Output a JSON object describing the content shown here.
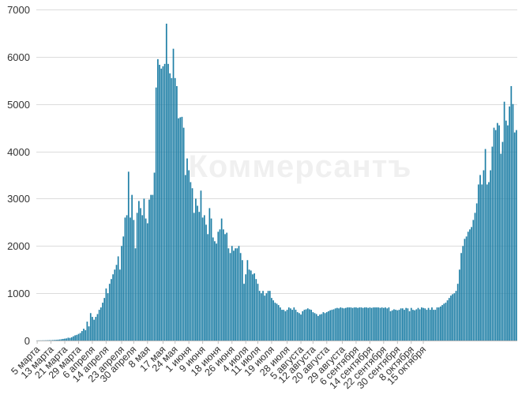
{
  "chart_data": {
    "type": "bar",
    "ylim": [
      0,
      7000
    ],
    "y_ticks": [
      0,
      1000,
      2000,
      3000,
      4000,
      5000,
      6000,
      7000
    ],
    "grid": true,
    "color": "#1f7fa6",
    "watermark": "Коммерсантъ",
    "x_tick_labels": [
      "5 марта",
      "13 марта",
      "21 марта",
      "29 марта",
      "6 апреля",
      "14 апреля",
      "23 апреля",
      "30 апреля",
      "8 мая",
      "17 мая",
      "24 мая",
      "1 июня",
      "9 июня",
      "18 июня",
      "26 июня",
      "4 июля",
      "11 июля",
      "19 июля",
      "28 июля",
      "5 августа",
      "12 августа",
      "20 августа",
      "29 августа",
      "6 сентября",
      "14 сентября",
      "22 сентября",
      "30 сентября",
      "8 октября",
      "15 октября"
    ],
    "x_tick_index": [
      0,
      8,
      16,
      24,
      32,
      40,
      49,
      56,
      64,
      73,
      80,
      88,
      96,
      105,
      113,
      121,
      128,
      136,
      145,
      153,
      160,
      168,
      177,
      185,
      193,
      201,
      209,
      217,
      224
    ],
    "values": [
      2,
      3,
      3,
      4,
      4,
      5,
      6,
      8,
      8,
      10,
      12,
      14,
      18,
      22,
      28,
      34,
      40,
      45,
      60,
      55,
      70,
      90,
      110,
      120,
      140,
      160,
      200,
      250,
      220,
      400,
      300,
      580,
      500,
      440,
      500,
      560,
      650,
      700,
      800,
      900,
      1100,
      1000,
      1200,
      1300,
      1400,
      1500,
      1600,
      1780,
      1500,
      2000,
      2200,
      2600,
      2650,
      3570,
      2600,
      3080,
      2550,
      1950,
      2700,
      2950,
      2800,
      2650,
      3000,
      2580,
      2480,
      2980,
      3080,
      3080,
      3550,
      5350,
      5950,
      5830,
      5750,
      5800,
      5850,
      6700,
      5850,
      5650,
      5550,
      6170,
      5550,
      5380,
      4700,
      4720,
      4730,
      4500,
      3500,
      3850,
      3600,
      3350,
      3220,
      2700,
      3000,
      2850,
      2720,
      3170,
      2600,
      2650,
      2450,
      2250,
      2800,
      2580,
      2180,
      2100,
      2050,
      2300,
      2350,
      2580,
      2350,
      2250,
      2280,
      1950,
      1850,
      2000,
      1900,
      1950,
      1950,
      2000,
      1850,
      1700,
      1200,
      1400,
      1700,
      1500,
      1480,
      1400,
      1420,
      1300,
      1200,
      1050,
      1000,
      1050,
      950,
      1000,
      1050,
      1050,
      900,
      850,
      800,
      780,
      750,
      700,
      650,
      650,
      620,
      650,
      700,
      680,
      650,
      700,
      650,
      600,
      580,
      550,
      620,
      650,
      660,
      680,
      660,
      650,
      600,
      580,
      560,
      520,
      550,
      560,
      600,
      580,
      600,
      620,
      640,
      650,
      660,
      680,
      690,
      680,
      700,
      690,
      680,
      690,
      700,
      700,
      700,
      690,
      700,
      700,
      690,
      700,
      700,
      690,
      700,
      700,
      690,
      700,
      690,
      700,
      700,
      700,
      700,
      690,
      700,
      690,
      700,
      680,
      700,
      620,
      640,
      660,
      650,
      640,
      650,
      680,
      680,
      650,
      690,
      680,
      620,
      690,
      650,
      640,
      660,
      690,
      660,
      700,
      690,
      680,
      650,
      690,
      650,
      700,
      650,
      650,
      700,
      700,
      720,
      750,
      780,
      800,
      850,
      900,
      950,
      980,
      1000,
      1050,
      1200,
      1500,
      1850,
      2000,
      2150,
      2200,
      2300,
      2350,
      2400,
      2550,
      2700,
      2900,
      3300,
      3500,
      3300,
      3600,
      4050,
      3300,
      3350,
      3600,
      4100,
      4500,
      4450,
      4600,
      4550,
      3950,
      4200,
      5050,
      4650,
      4550,
      4950,
      5380,
      5000,
      4400,
      4450
    ]
  }
}
